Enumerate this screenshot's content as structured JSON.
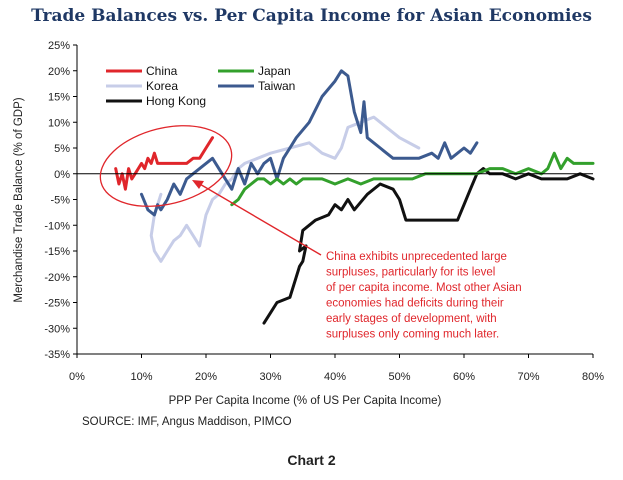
{
  "chart_data": {
    "type": "line",
    "title": "Trade Balances vs. Per Capita Income for Asian Economies",
    "xlabel": "PPP Per Capita Income (% of US Per Capita Income)",
    "ylabel": "Merchandise Trade Balance (% of GDP)",
    "xlim": [
      0,
      80
    ],
    "ylim": [
      -35,
      25
    ],
    "x_ticks": [
      "0%",
      "10%",
      "20%",
      "30%",
      "40%",
      "50%",
      "60%",
      "70%",
      "80%"
    ],
    "y_ticks": [
      "25%",
      "20%",
      "15%",
      "10%",
      "5%",
      "0%",
      "-5%",
      "-10%",
      "-15%",
      "-20%",
      "-25%",
      "-30%",
      "-35%"
    ],
    "legend": "top-left",
    "series": [
      {
        "name": "Korea",
        "color": "#c7cde8",
        "x": [
          13,
          12,
          11.5,
          12,
          12.5,
          13,
          14,
          15,
          16,
          17,
          18,
          19,
          20,
          21,
          22,
          23,
          24,
          25,
          26,
          28,
          30,
          33,
          36,
          38,
          40,
          41,
          42,
          44,
          46,
          48,
          50,
          53
        ],
        "y": [
          -4,
          -8,
          -12,
          -15,
          -16,
          -17,
          -15,
          -13,
          -12,
          -10,
          -12,
          -14,
          -8,
          -5,
          -4,
          -2,
          -1,
          1,
          2,
          3,
          4,
          5,
          6,
          4,
          3,
          5,
          9,
          10,
          11,
          9,
          7,
          5
        ]
      },
      {
        "name": "Taiwan",
        "color": "#3c5a8f",
        "x": [
          10,
          11,
          12,
          12.5,
          13,
          14,
          15,
          16,
          17,
          19,
          21,
          23,
          24,
          25,
          26,
          27,
          28,
          29,
          30,
          31,
          32,
          33,
          34,
          36,
          38,
          40,
          41,
          42,
          43,
          44,
          44.5,
          45,
          46,
          47,
          48,
          49,
          50,
          52,
          53,
          55,
          56,
          57,
          58,
          60,
          61,
          62
        ],
        "y": [
          -4,
          -7,
          -8,
          -6,
          -7,
          -5,
          -2,
          -4,
          -1,
          1,
          3,
          -1,
          -3,
          1,
          -2,
          2,
          0,
          2,
          3,
          -1,
          3,
          5,
          7,
          10,
          15,
          18,
          20,
          19,
          12,
          8,
          14,
          7,
          6,
          5,
          4,
          3,
          3,
          3,
          3,
          4,
          3,
          6,
          3,
          5,
          4,
          6
        ]
      },
      {
        "name": "Hong Kong",
        "color": "#111111",
        "x": [
          29,
          30,
          31,
          33,
          34,
          34.5,
          35,
          35.5,
          34.5,
          35,
          37,
          39,
          40,
          41,
          42,
          43,
          45,
          47,
          49,
          50,
          51,
          53,
          55,
          57,
          59,
          60,
          61,
          62,
          63,
          64,
          66,
          68,
          70,
          72,
          74,
          76,
          78,
          80
        ],
        "y": [
          -29,
          -27,
          -25,
          -24,
          -20,
          -18,
          -17,
          -14,
          -15,
          -11,
          -9,
          -8,
          -6,
          -7,
          -5,
          -7,
          -4,
          -2,
          -3,
          -5,
          -9,
          -9,
          -9,
          -9,
          -9,
          -6,
          -3,
          0,
          1,
          0,
          0,
          -1,
          0,
          -1,
          -1,
          -1,
          0,
          -1
        ]
      },
      {
        "name": "Japan",
        "color": "#33a02c",
        "x": [
          24,
          25,
          26,
          27,
          28,
          29,
          30,
          31,
          32,
          33,
          34,
          35,
          36,
          38,
          40,
          42,
          44,
          46,
          48,
          50,
          52,
          54,
          56,
          58,
          60,
          62,
          64,
          66,
          68,
          70,
          72,
          73,
          74,
          75,
          76,
          77,
          78,
          80
        ],
        "y": [
          -6,
          -5,
          -3,
          -2,
          -1,
          -1,
          -2,
          -1,
          -2,
          -1,
          -2,
          -1,
          -1,
          -1,
          -2,
          -1,
          -2,
          -1,
          -1,
          -1,
          -1,
          0,
          0,
          0,
          0,
          0,
          1,
          1,
          0,
          1,
          0,
          1,
          4,
          1,
          3,
          2,
          2,
          2
        ]
      },
      {
        "name": "China",
        "color": "#e0262b",
        "x": [
          6,
          6.5,
          7,
          7.5,
          8,
          8.5,
          9,
          9.5,
          10,
          10.5,
          11,
          11.5,
          12,
          12.5,
          13,
          14,
          15,
          16,
          17,
          18,
          19,
          20,
          21
        ],
        "y": [
          1,
          -2,
          0,
          -3,
          1,
          -1,
          0,
          1,
          2,
          1,
          3,
          2,
          4,
          2,
          2,
          2,
          2,
          2,
          2,
          3,
          3,
          5,
          7
        ]
      }
    ],
    "annotation": "China exhibits unprecedented large surpluses, particularly for its level of per capita income. Most other Asian economies had deficits during their early stages of development, with surpluses only coming much later.",
    "source": "SOURCE:  IMF, Angus Maddison, PIMCO",
    "caption": "Chart 2",
    "grid": false
  }
}
